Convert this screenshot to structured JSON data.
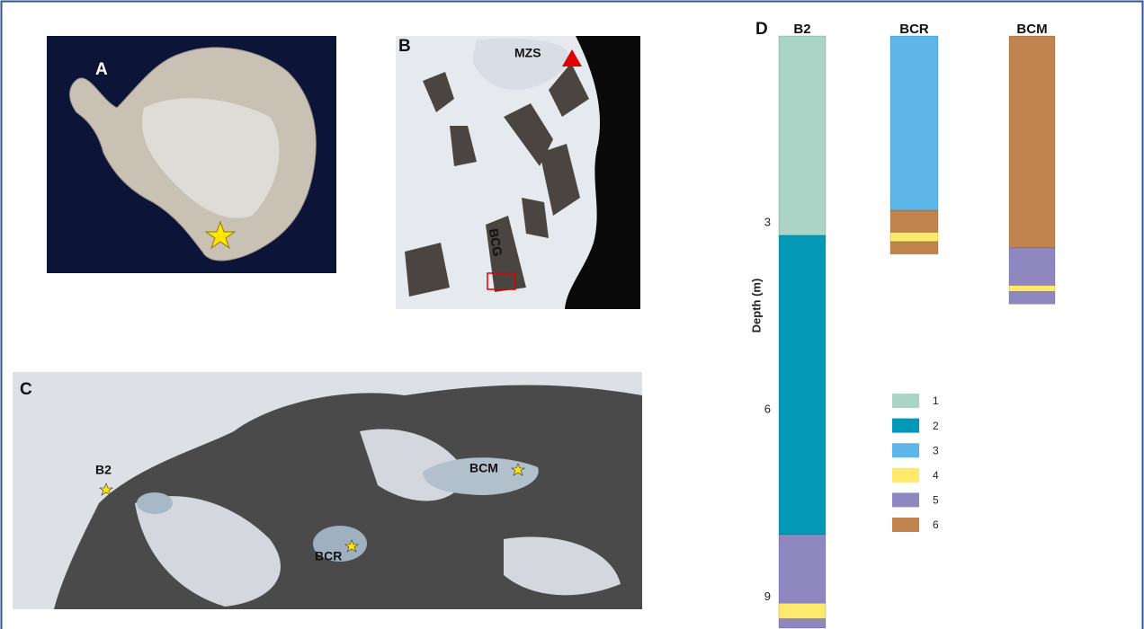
{
  "panels": {
    "a": {
      "label": "A"
    },
    "b": {
      "label": "B",
      "station": "MZS",
      "glacier": "BCG"
    },
    "c": {
      "label": "C",
      "sites": [
        "B2",
        "BCR",
        "BCM"
      ]
    }
  },
  "chart_data": {
    "type": "stratigraphic-column",
    "panel_label": "D",
    "ylabel": "Depth (m)",
    "ylim": [
      0,
      9.5
    ],
    "yticks": [
      3,
      6,
      9
    ],
    "inverted": true,
    "units": [
      {
        "name": "1",
        "color": "#a9d4c6"
      },
      {
        "name": "2",
        "color": "#0399b6"
      },
      {
        "name": "3",
        "color": "#5eb5e8"
      },
      {
        "name": "4",
        "color": "#fde96c"
      },
      {
        "name": "5",
        "color": "#8f87c0"
      },
      {
        "name": "6",
        "color": "#c1834f"
      }
    ],
    "columns": [
      {
        "name": "B2",
        "layers": [
          {
            "unit": 1,
            "thickness": 3.2
          },
          {
            "unit": 2,
            "thickness": 4.8
          },
          {
            "unit": 5,
            "thickness": 1.1
          },
          {
            "unit": 4,
            "thickness": 0.25
          },
          {
            "unit": 5,
            "thickness": 0.15
          }
        ]
      },
      {
        "name": "BCR",
        "layers": [
          {
            "unit": 3,
            "thickness": 2.8
          },
          {
            "unit": 6,
            "thickness": 0.35
          },
          {
            "unit": 4,
            "thickness": 0.15
          },
          {
            "unit": 6,
            "thickness": 0.2
          }
        ]
      },
      {
        "name": "BCM",
        "layers": [
          {
            "unit": 6,
            "thickness": 3.4
          },
          {
            "unit": 5,
            "thickness": 0.6
          },
          {
            "unit": 4,
            "thickness": 0.1
          },
          {
            "unit": 5,
            "thickness": 0.2
          }
        ]
      }
    ]
  }
}
